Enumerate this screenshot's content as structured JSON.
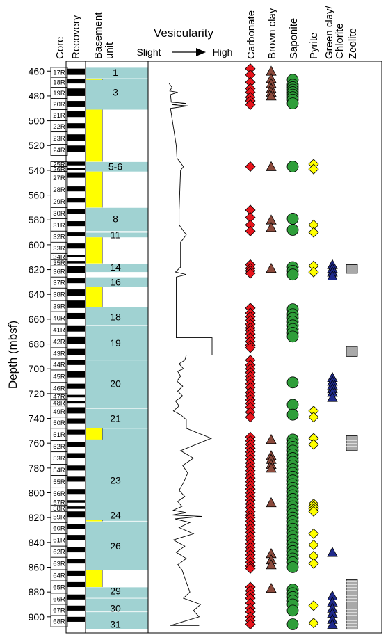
{
  "chart_data": {
    "type": "scatter",
    "ylabel": "Depth (mbsf)",
    "ylim": [
      452,
      913
    ],
    "y_ticks": [
      460,
      480,
      500,
      520,
      540,
      560,
      580,
      600,
      620,
      640,
      660,
      680,
      700,
      720,
      740,
      760,
      780,
      800,
      820,
      840,
      860,
      880,
      900
    ],
    "column_headers": {
      "core": "Core",
      "recovery": "Recovery",
      "basement_unit": "Basement unit",
      "vesicularity": "Vesicularity",
      "carbonate": "Carbonate",
      "brown_clay": "Brown clay",
      "saponite": "Saponite",
      "pyrite": "Pyrite",
      "green_clay": "Green clay/ Chlorite",
      "zeolite": "Zeolite"
    },
    "vesicularity_scale": {
      "low": "Slight",
      "high": "High"
    },
    "colors": {
      "carbonate": "#e8141c",
      "brown_clay": "#8b4a3c",
      "saponite": "#2f9e3a",
      "pyrite": "#ffff00",
      "green_clay": "#1f2a8c",
      "zeolite": "#a9a9a9",
      "unit_fill": "#a0d2d2",
      "gap_fill": "#ffff00"
    },
    "cores": [
      {
        "name": "17R",
        "top": 457,
        "bottom": 465
      },
      {
        "name": "18R",
        "top": 465,
        "bottom": 473
      },
      {
        "name": "19R",
        "top": 473,
        "bottom": 482
      },
      {
        "name": "20R",
        "top": 482,
        "bottom": 491
      },
      {
        "name": "21R",
        "top": 491,
        "bottom": 500
      },
      {
        "name": "22R",
        "top": 500,
        "bottom": 509
      },
      {
        "name": "23R",
        "top": 509,
        "bottom": 519
      },
      {
        "name": "24R",
        "top": 519,
        "bottom": 528
      },
      {
        "name": "25R",
        "top": 533,
        "bottom": 537
      },
      {
        "name": "26R",
        "top": 537,
        "bottom": 541
      },
      {
        "name": "27R",
        "top": 541,
        "bottom": 551
      },
      {
        "name": "28R",
        "top": 551,
        "bottom": 560
      },
      {
        "name": "29R",
        "top": 560,
        "bottom": 570
      },
      {
        "name": "30R",
        "top": 570,
        "bottom": 579
      },
      {
        "name": "31R",
        "top": 579,
        "bottom": 589
      },
      {
        "name": "32R",
        "top": 589,
        "bottom": 598
      },
      {
        "name": "33R",
        "top": 598,
        "bottom": 607
      },
      {
        "name": "34R",
        "top": 607,
        "bottom": 612
      },
      {
        "name": "35R",
        "top": 612,
        "bottom": 617
      },
      {
        "name": "36R",
        "top": 617,
        "bottom": 626
      },
      {
        "name": "37R",
        "top": 626,
        "bottom": 635
      },
      {
        "name": "38R",
        "top": 635,
        "bottom": 645
      },
      {
        "name": "39R",
        "top": 645,
        "bottom": 654
      },
      {
        "name": "40R",
        "top": 654,
        "bottom": 664
      },
      {
        "name": "41R",
        "top": 664,
        "bottom": 673
      },
      {
        "name": "42R",
        "top": 673,
        "bottom": 683
      },
      {
        "name": "43R",
        "top": 683,
        "bottom": 692
      },
      {
        "name": "44R",
        "top": 692,
        "bottom": 701
      },
      {
        "name": "45R",
        "top": 701,
        "bottom": 711
      },
      {
        "name": "46R",
        "top": 711,
        "bottom": 720
      },
      {
        "name": "47R",
        "top": 720,
        "bottom": 725
      },
      {
        "name": "48R",
        "top": 725,
        "bottom": 730
      },
      {
        "name": "49R",
        "top": 730,
        "bottom": 739
      },
      {
        "name": "50R",
        "top": 739,
        "bottom": 748
      },
      {
        "name": "51R",
        "top": 748,
        "bottom": 758
      },
      {
        "name": "52R",
        "top": 758,
        "bottom": 767
      },
      {
        "name": "53R",
        "top": 767,
        "bottom": 777
      },
      {
        "name": "54R",
        "top": 777,
        "bottom": 786
      },
      {
        "name": "55R",
        "top": 786,
        "bottom": 796
      },
      {
        "name": "56R",
        "top": 796,
        "bottom": 805
      },
      {
        "name": "57R",
        "top": 805,
        "bottom": 810
      },
      {
        "name": "58R",
        "top": 810,
        "bottom": 815
      },
      {
        "name": "59R",
        "top": 815,
        "bottom": 824
      },
      {
        "name": "60R",
        "top": 824,
        "bottom": 833
      },
      {
        "name": "61R",
        "top": 833,
        "bottom": 843
      },
      {
        "name": "62R",
        "top": 843,
        "bottom": 852
      },
      {
        "name": "63R",
        "top": 852,
        "bottom": 862
      },
      {
        "name": "64R",
        "top": 862,
        "bottom": 871
      },
      {
        "name": "65R",
        "top": 871,
        "bottom": 881
      },
      {
        "name": "66R",
        "top": 881,
        "bottom": 890
      },
      {
        "name": "67R",
        "top": 890,
        "bottom": 899
      },
      {
        "name": "68R",
        "top": 899,
        "bottom": 908
      }
    ],
    "recovery": [
      [
        458,
        463
      ],
      [
        466,
        470
      ],
      [
        474,
        480
      ],
      [
        484,
        489
      ],
      [
        492,
        497
      ],
      [
        502,
        506
      ],
      [
        511,
        516
      ],
      [
        520,
        525
      ],
      [
        533,
        536
      ],
      [
        538,
        540
      ],
      [
        542,
        546
      ],
      [
        553,
        557
      ],
      [
        562,
        566
      ],
      [
        571,
        575
      ],
      [
        581,
        585
      ],
      [
        590,
        593
      ],
      [
        599,
        603
      ],
      [
        608,
        610
      ],
      [
        613,
        615
      ],
      [
        617,
        623
      ],
      [
        627,
        631
      ],
      [
        636,
        641
      ],
      [
        645,
        651
      ],
      [
        655,
        660
      ],
      [
        665,
        670
      ],
      [
        674,
        680
      ],
      [
        684,
        689
      ],
      [
        693,
        697
      ],
      [
        702,
        707
      ],
      [
        712,
        716
      ],
      [
        721,
        723
      ],
      [
        726,
        728
      ],
      [
        731,
        736
      ],
      [
        740,
        744
      ],
      [
        749,
        753
      ],
      [
        759,
        763
      ],
      [
        768,
        772
      ],
      [
        778,
        782
      ],
      [
        787,
        791
      ],
      [
        797,
        801
      ],
      [
        806,
        808
      ],
      [
        811,
        813
      ],
      [
        815,
        820
      ],
      [
        825,
        829
      ],
      [
        834,
        838
      ],
      [
        844,
        848
      ],
      [
        853,
        857
      ],
      [
        863,
        867
      ],
      [
        872,
        876
      ],
      [
        882,
        886
      ],
      [
        891,
        895
      ],
      [
        900,
        904
      ]
    ],
    "units": [
      {
        "label": "1",
        "top": 457,
        "bottom": 466
      },
      {
        "label": "3",
        "top": 466,
        "bottom": 491
      },
      {
        "label": "5-6",
        "top": 533,
        "bottom": 541
      },
      {
        "label": "8",
        "top": 570,
        "bottom": 589
      },
      {
        "label": "11",
        "top": 590,
        "bottom": 594
      },
      {
        "label": "14",
        "top": 615,
        "bottom": 622
      },
      {
        "label": "16",
        "top": 626,
        "bottom": 634
      },
      {
        "label": "18",
        "top": 650,
        "bottom": 665
      },
      {
        "label": "19",
        "top": 665,
        "bottom": 693
      },
      {
        "label": "20",
        "top": 693,
        "bottom": 732
      },
      {
        "label": "21",
        "top": 732,
        "bottom": 748
      },
      {
        "label": "23",
        "top": 748,
        "bottom": 822
      },
      {
        "label": "24",
        "top": 822,
        "bottom": 823
      },
      {
        "label": "26",
        "top": 823,
        "bottom": 862
      },
      {
        "label": "29",
        "top": 876,
        "bottom": 885
      },
      {
        "label": "30",
        "top": 885,
        "bottom": 896
      },
      {
        "label": "31",
        "top": 896,
        "bottom": 910
      }
    ],
    "unit_label_depths": [
      {
        "label": "1",
        "y": 461
      },
      {
        "label": "3",
        "y": 477
      },
      {
        "label": "5-6",
        "y": 537
      },
      {
        "label": "8",
        "y": 579
      },
      {
        "label": "11",
        "y": 592
      },
      {
        "label": "14",
        "y": 618
      },
      {
        "label": "16",
        "y": 630
      },
      {
        "label": "18",
        "y": 658
      },
      {
        "label": "19",
        "y": 679
      },
      {
        "label": "20",
        "y": 712
      },
      {
        "label": "21",
        "y": 740
      },
      {
        "label": "23",
        "y": 790
      },
      {
        "label": "24",
        "y": 818
      },
      {
        "label": "26",
        "y": 843
      },
      {
        "label": "29",
        "y": 879
      },
      {
        "label": "30",
        "y": 893
      },
      {
        "label": "31",
        "y": 906
      }
    ],
    "gaps": [
      {
        "top": 466,
        "bottom": 467
      },
      {
        "top": 491,
        "bottom": 533
      },
      {
        "top": 541,
        "bottom": 570
      },
      {
        "top": 594,
        "bottom": 615
      },
      {
        "top": 634,
        "bottom": 650
      },
      {
        "top": 748,
        "bottom": 757
      },
      {
        "top": 822,
        "bottom": 823
      },
      {
        "top": 862,
        "bottom": 876
      }
    ],
    "vesicularity": [
      {
        "x": 0.06,
        "y": 470
      },
      {
        "x": 0.1,
        "y": 473
      },
      {
        "x": 0.07,
        "y": 476
      },
      {
        "x": 0.18,
        "y": 477
      },
      {
        "x": 0.08,
        "y": 479
      },
      {
        "x": 0.09,
        "y": 485
      },
      {
        "x": 0.3,
        "y": 486
      },
      {
        "x": 0.1,
        "y": 487
      },
      {
        "x": 0.32,
        "y": 488
      },
      {
        "x": 0.08,
        "y": 490
      },
      {
        "x": 0.16,
        "y": 520
      },
      {
        "x": 0.17,
        "y": 530
      },
      {
        "x": 0.26,
        "y": 537
      },
      {
        "x": 0.22,
        "y": 540
      },
      {
        "x": 0.2,
        "y": 572
      },
      {
        "x": 0.2,
        "y": 584
      },
      {
        "x": 0.3,
        "y": 592
      },
      {
        "x": 0.22,
        "y": 598
      },
      {
        "x": 0.22,
        "y": 618
      },
      {
        "x": 0.15,
        "y": 622
      },
      {
        "x": 0.3,
        "y": 624
      },
      {
        "x": 0.16,
        "y": 626
      },
      {
        "x": 0.16,
        "y": 675
      },
      {
        "x": 0.66,
        "y": 675
      },
      {
        "x": 0.66,
        "y": 689
      },
      {
        "x": 0.3,
        "y": 689
      },
      {
        "x": 0.28,
        "y": 693
      },
      {
        "x": 0.2,
        "y": 696
      },
      {
        "x": 0.26,
        "y": 700
      },
      {
        "x": 0.18,
        "y": 702
      },
      {
        "x": 0.22,
        "y": 706
      },
      {
        "x": 0.17,
        "y": 710
      },
      {
        "x": 0.25,
        "y": 714
      },
      {
        "x": 0.18,
        "y": 718
      },
      {
        "x": 0.25,
        "y": 722
      },
      {
        "x": 0.15,
        "y": 726
      },
      {
        "x": 0.2,
        "y": 730
      },
      {
        "x": 0.12,
        "y": 734
      },
      {
        "x": 0.22,
        "y": 737
      },
      {
        "x": 0.3,
        "y": 741
      },
      {
        "x": 0.3,
        "y": 748
      },
      {
        "x": 0.65,
        "y": 756
      },
      {
        "x": 0.22,
        "y": 766
      },
      {
        "x": 0.4,
        "y": 772
      },
      {
        "x": 0.25,
        "y": 778
      },
      {
        "x": 0.32,
        "y": 784
      },
      {
        "x": 0.26,
        "y": 792
      },
      {
        "x": 0.2,
        "y": 798
      },
      {
        "x": 0.28,
        "y": 803
      },
      {
        "x": 0.18,
        "y": 807
      },
      {
        "x": 0.24,
        "y": 811
      },
      {
        "x": 0.12,
        "y": 814
      },
      {
        "x": 0.3,
        "y": 816
      },
      {
        "x": 0.1,
        "y": 818
      },
      {
        "x": 0.52,
        "y": 819
      },
      {
        "x": 0.14,
        "y": 821
      },
      {
        "x": 0.35,
        "y": 824
      },
      {
        "x": 0.2,
        "y": 828
      },
      {
        "x": 0.4,
        "y": 833
      },
      {
        "x": 0.12,
        "y": 838
      },
      {
        "x": 0.28,
        "y": 843
      },
      {
        "x": 0.16,
        "y": 848
      },
      {
        "x": 0.3,
        "y": 853
      },
      {
        "x": 0.18,
        "y": 858
      },
      {
        "x": 0.24,
        "y": 862
      },
      {
        "x": 0.3,
        "y": 872
      },
      {
        "x": 0.35,
        "y": 880
      },
      {
        "x": 0.26,
        "y": 885
      },
      {
        "x": 0.5,
        "y": 890
      },
      {
        "x": 0.4,
        "y": 895
      },
      {
        "x": 0.48,
        "y": 900
      },
      {
        "x": 0.08,
        "y": 907
      },
      {
        "x": 0.48,
        "y": 907
      }
    ],
    "minerals": {
      "carbonate": [
        458,
        463,
        469,
        474,
        477,
        481,
        484,
        487,
        537,
        572,
        578,
        584,
        589,
        616,
        619,
        621,
        623,
        651,
        655,
        658,
        661,
        664,
        667,
        669,
        672,
        675,
        678,
        681,
        683,
        693,
        697,
        700,
        703,
        706,
        709,
        712,
        715,
        719,
        722,
        725,
        728,
        731,
        735,
        739,
        755,
        758,
        761,
        764,
        767,
        770,
        773,
        776,
        779,
        782,
        785,
        788,
        791,
        794,
        797,
        800,
        803,
        806,
        809,
        812,
        815,
        818,
        820,
        823,
        826,
        829,
        832,
        835,
        838,
        841,
        844,
        847,
        850,
        853,
        856,
        859,
        861,
        876,
        879,
        882,
        885,
        889,
        893,
        896,
        900,
        903,
        906
      ],
      "brown_clay": [
        460,
        466,
        470,
        474,
        477,
        480,
        537,
        580,
        586,
        619,
        757,
        770,
        773,
        777,
        780,
        808,
        849,
        854,
        858,
        877
      ],
      "saponite": [
        467,
        471,
        473,
        475,
        477,
        479,
        481,
        483,
        486,
        537,
        579,
        588,
        618,
        621,
        624,
        652,
        656,
        659,
        662,
        665,
        668,
        671,
        674,
        711,
        729,
        737,
        757,
        760,
        763,
        766,
        769,
        772,
        775,
        778,
        781,
        784,
        787,
        790,
        793,
        796,
        799,
        802,
        805,
        808,
        811,
        814,
        817,
        820,
        823,
        826,
        829,
        832,
        835,
        838,
        841,
        844,
        847,
        850,
        853,
        856,
        860,
        878,
        881,
        884,
        887,
        890,
        895,
        906
      ],
      "pyrite": [
        535,
        539,
        584,
        590,
        617,
        622,
        734,
        739,
        756,
        761,
        809,
        811,
        813,
        815,
        833,
        842,
        851,
        857,
        891,
        905
      ],
      "green_clay": [
        616,
        619,
        622,
        625,
        707,
        710,
        713,
        716,
        719,
        723,
        848,
        883,
        888,
        893,
        897,
        902,
        906
      ],
      "zeolite": [
        {
          "top": 616,
          "bottom": 623
        },
        {
          "top": 682,
          "bottom": 690
        },
        {
          "top": 754,
          "bottom": 766
        },
        {
          "top": 870,
          "bottom": 910
        }
      ]
    }
  }
}
